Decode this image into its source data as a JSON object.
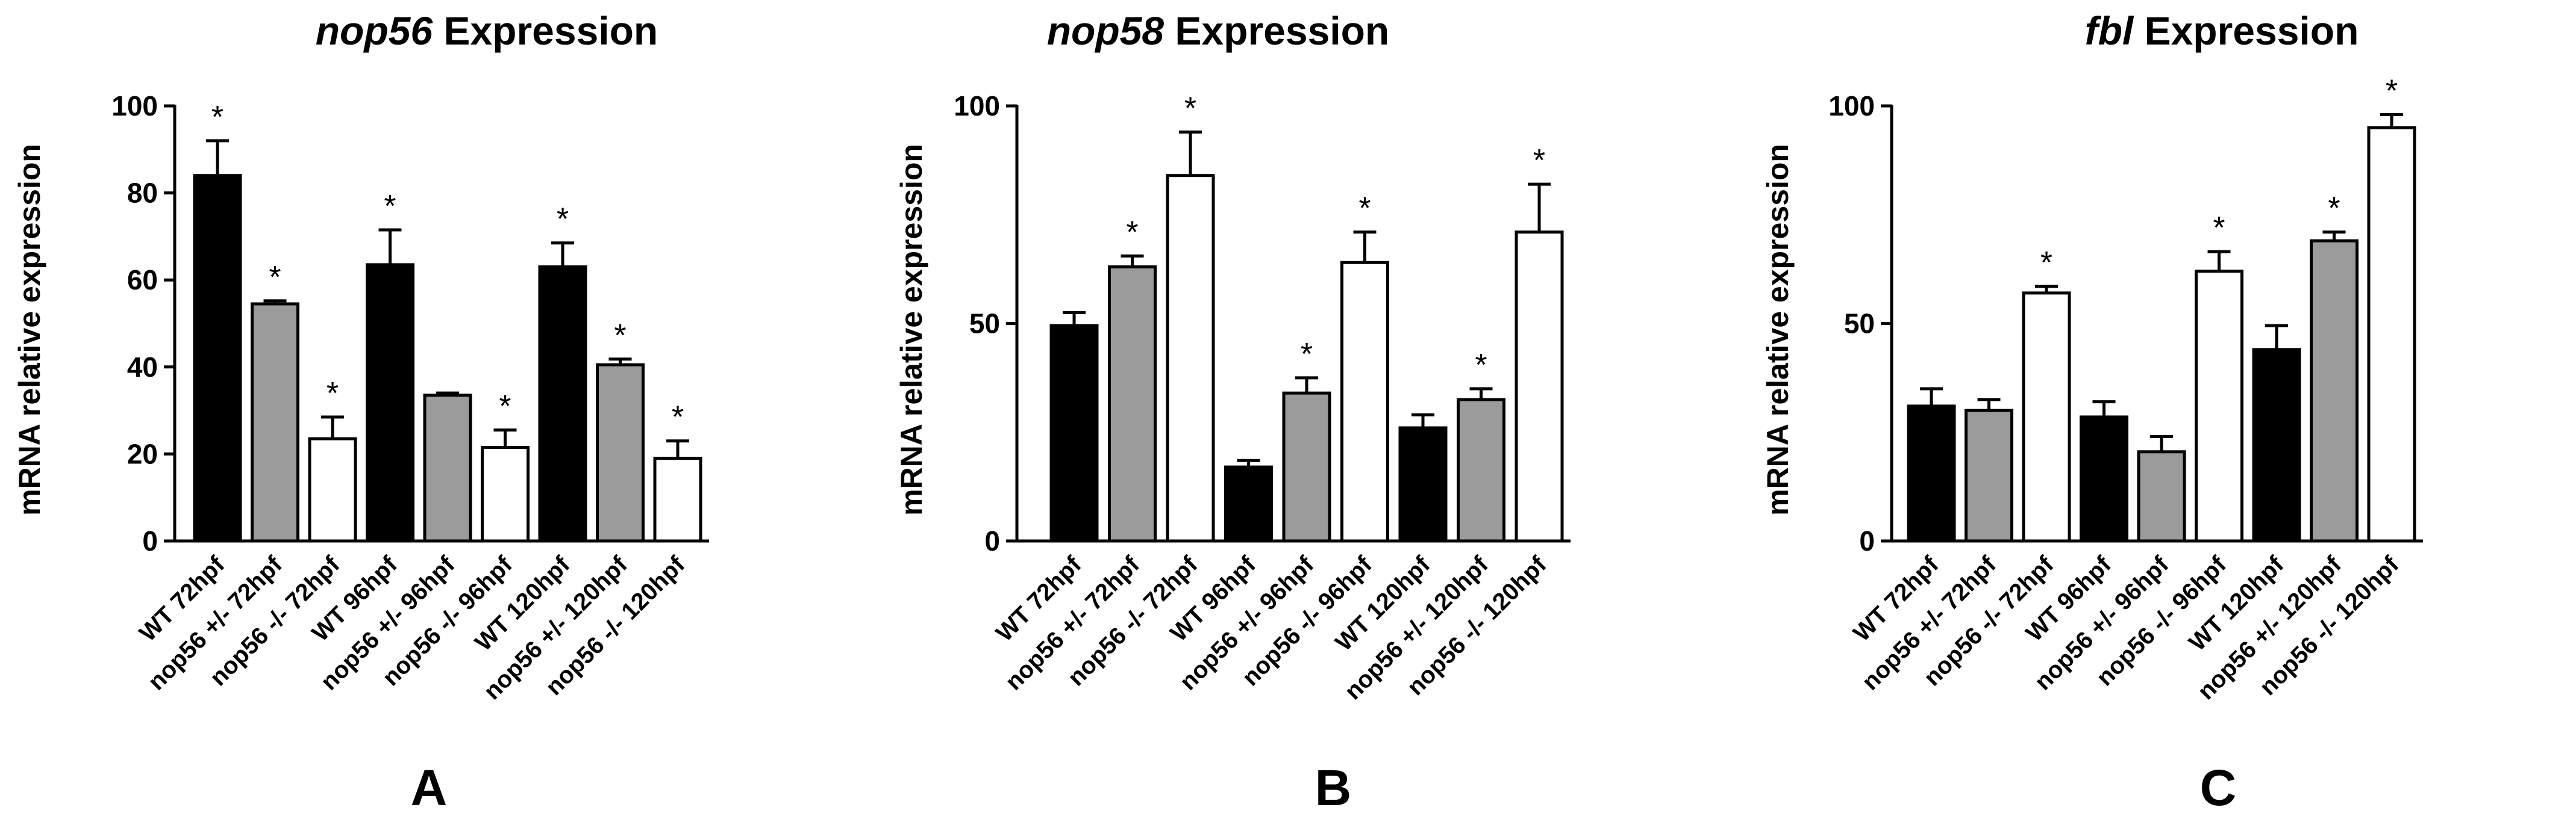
{
  "colors": {
    "WT": "#000000",
    "het": "#9b9b9b",
    "ko": "#ffffff",
    "stroke": "#000000"
  },
  "chart_data": [
    {
      "type": "bar",
      "panel": "A",
      "title_italic": "nop56",
      "title_rest": " Expression",
      "ylabel": "mRNA relative expression",
      "ylim": [
        0,
        100
      ],
      "yticks": [
        0,
        20,
        40,
        60,
        80,
        100
      ],
      "categories": [
        "WT 72hpf",
        "nop56 +/- 72hpf",
        "nop56 -/- 72hpf",
        "WT 96hpf",
        "nop56 +/- 96hpf",
        "nop56 -/- 96hpf",
        "WT 120hpf",
        "nop56 +/- 120hpf",
        "nop56 -/- 120hpf"
      ],
      "groups": [
        "WT",
        "het",
        "ko",
        "WT",
        "het",
        "ko",
        "WT",
        "het",
        "ko"
      ],
      "values": [
        84,
        54.5,
        23.5,
        63.5,
        33.5,
        21.5,
        63,
        40.5,
        19
      ],
      "errors": [
        8,
        0.7,
        5,
        8,
        0.5,
        4,
        5.5,
        1.3,
        4
      ],
      "significance": [
        "*",
        "*",
        "*",
        "*",
        "",
        "*",
        "*",
        "*",
        "*"
      ]
    },
    {
      "type": "bar",
      "panel": "B",
      "title_italic": "nop58",
      "title_rest": " Expression",
      "ylabel": "mRNA relative expression",
      "ylim": [
        0,
        100
      ],
      "yticks": [
        0,
        50,
        100
      ],
      "categories": [
        "WT 72hpf",
        "nop56 +/- 72hpf",
        "nop56 -/- 72hpf",
        "WT 96hpf",
        "nop56 +/- 96hpf",
        "nop56 -/- 96hpf",
        "WT 120hpf",
        "nop56 +/- 120hpf",
        "nop56 -/- 120hpf"
      ],
      "groups": [
        "WT",
        "het",
        "ko",
        "WT",
        "het",
        "ko",
        "WT",
        "het",
        "ko"
      ],
      "values": [
        49.5,
        63,
        84,
        17,
        34,
        64,
        26,
        32.5,
        71
      ],
      "errors": [
        3,
        2.5,
        10,
        1.5,
        3.5,
        7,
        3,
        2.5,
        11
      ],
      "significance": [
        "",
        "*",
        "*",
        "",
        "*",
        "*",
        "",
        "*",
        "*"
      ]
    },
    {
      "type": "bar",
      "panel": "C",
      "title_italic": "fbl",
      "title_rest": " Expression",
      "ylabel": "mRNA relative expression",
      "ylim": [
        0,
        100
      ],
      "yticks": [
        0,
        50,
        100
      ],
      "categories": [
        "WT 72hpf",
        "nop56 +/- 72hpf",
        "nop56 -/- 72hpf",
        "WT 96hpf",
        "nop56 +/- 96hpf",
        "nop56 -/- 96hpf",
        "WT 120hpf",
        "nop56 +/- 120hpf",
        "nop56 -/- 120hpf"
      ],
      "groups": [
        "WT",
        "het",
        "ko",
        "WT",
        "het",
        "ko",
        "WT",
        "het",
        "ko"
      ],
      "values": [
        31,
        30,
        57,
        28.5,
        20.5,
        62,
        44,
        69,
        95
      ],
      "errors": [
        4,
        2.5,
        1.5,
        3.5,
        3.5,
        4.5,
        5.5,
        2,
        3
      ],
      "significance": [
        "",
        "",
        "*",
        "",
        "",
        "*",
        "",
        "*",
        "*"
      ]
    }
  ]
}
